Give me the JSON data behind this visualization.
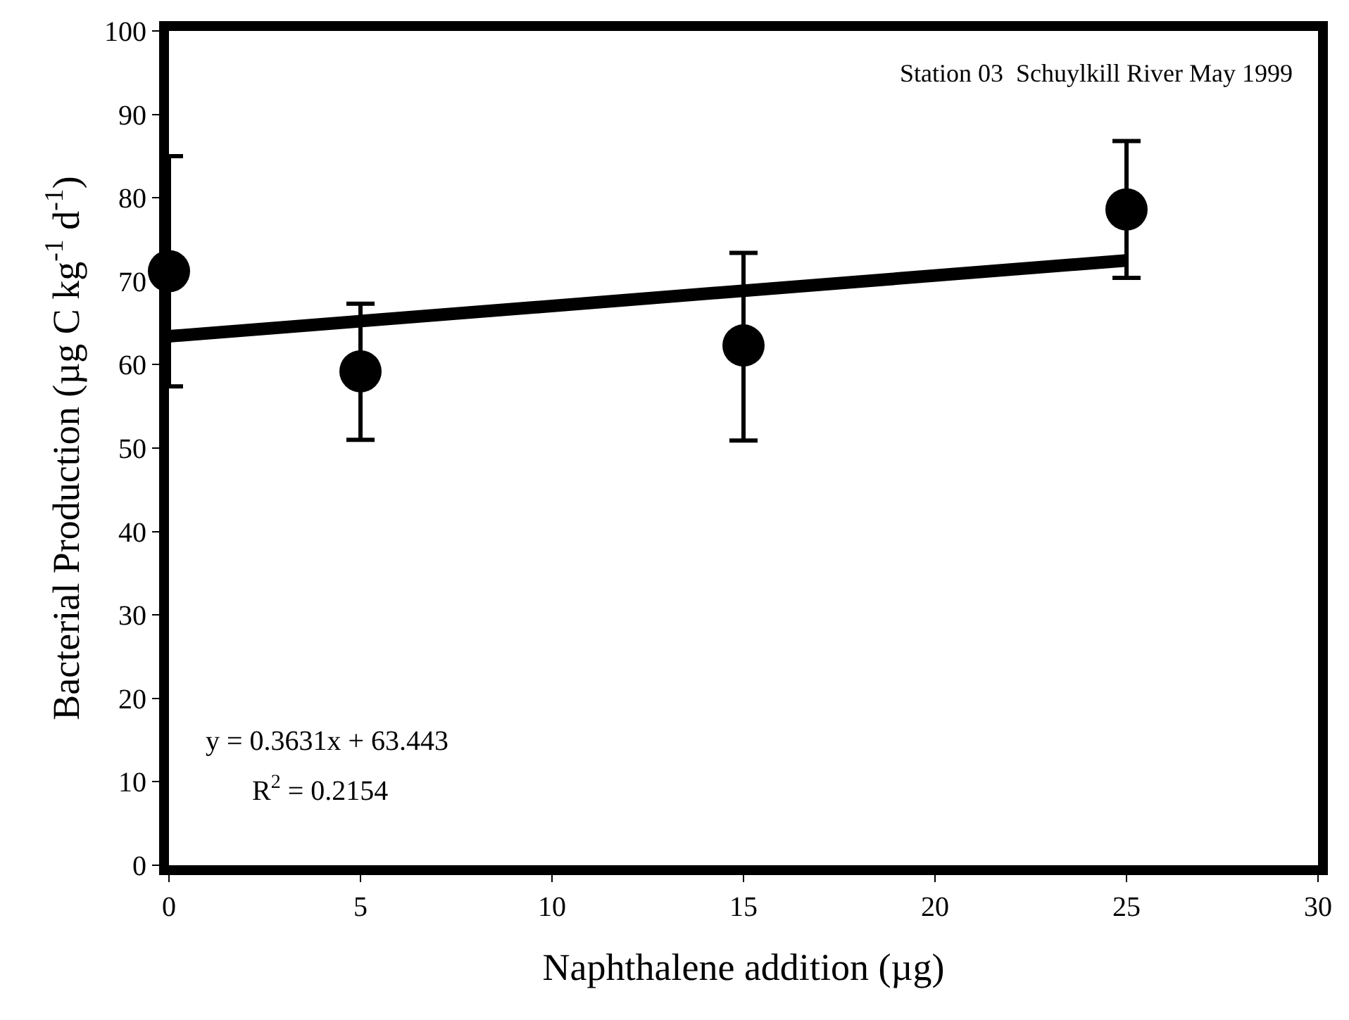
{
  "chart_data": {
    "type": "scatter",
    "xlabel": "Naphthalene addition (µg)",
    "ylabel": "Bacterial Production (µg C kg$^{-1}$ d$^{-1}$)",
    "xlim": [
      0,
      30
    ],
    "xticks": [
      0,
      5,
      10,
      15,
      20,
      25,
      30
    ],
    "ylim": [
      0,
      100
    ],
    "yticks": [
      0,
      10,
      20,
      30,
      40,
      50,
      60,
      70,
      80,
      90,
      100
    ],
    "marker": "circle",
    "series": [
      {
        "color": "#000000",
        "x": [
          0,
          5,
          15,
          25
        ],
        "values": [
          71.2,
          59.2,
          62.3,
          78.6
        ],
        "errors": [
          [
            57.4,
            85.0
          ],
          [
            51.0,
            67.3
          ],
          [
            50.9,
            73.4
          ],
          [
            70.4,
            86.8
          ]
        ]
      },
      {
        "type": "line",
        "color": "#000000",
        "x": [
          0,
          25
        ],
        "values": [
          63.4,
          72.5
        ],
        "marker": "none",
        "line_style": "solid"
      }
    ],
    "annotations": [
      "Station 03  Schuylkill River May 1999",
      "y = 0.3631x + 63.443",
      "R$^{2}$ = 0.2154"
    ]
  }
}
